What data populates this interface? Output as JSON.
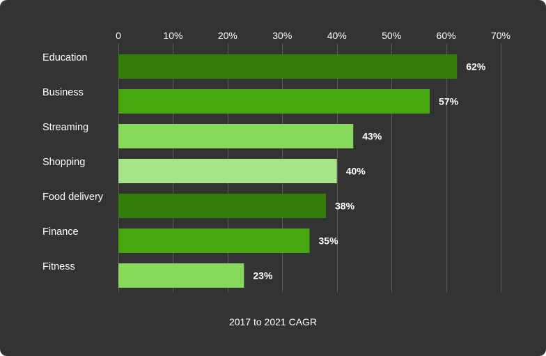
{
  "chart_data": {
    "type": "bar",
    "orientation": "horizontal",
    "title": "",
    "xlabel": "2017 to 2021 CAGR",
    "ylabel": "",
    "xlim": [
      0,
      70
    ],
    "x_ticks": [
      0,
      10,
      20,
      30,
      40,
      50,
      60,
      70
    ],
    "x_tick_labels": [
      "0",
      "10%",
      "20%",
      "30%",
      "40%",
      "50%",
      "60%",
      "70%"
    ],
    "grid": true,
    "categories": [
      "Education",
      "Business",
      "Streaming",
      "Shopping",
      "Food delivery",
      "Finance",
      "Fitness"
    ],
    "values": [
      62,
      57,
      43,
      40,
      38,
      35,
      23
    ],
    "value_labels": [
      "62%",
      "57%",
      "43%",
      "40%",
      "38%",
      "35%",
      "23%"
    ],
    "bar_colors": [
      "#337d0a",
      "#46a70f",
      "#86d95a",
      "#a6e58a",
      "#337d0a",
      "#46a70f",
      "#86d95a"
    ]
  },
  "colors": {
    "background": "#333333",
    "text": "#ffffff",
    "grid": "#5a5a5a"
  }
}
